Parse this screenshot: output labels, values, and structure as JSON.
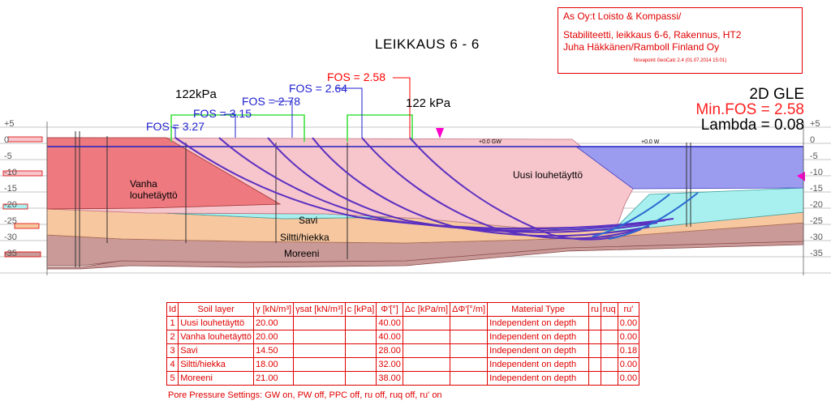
{
  "header": {
    "title_lines": [
      "As Oy:t Loisto & Kompassi/",
      "",
      "Stabiliteetti, leikkaus 6-6, Rakennus, HT2",
      "Juha Häkkänen/Ramboll Finland Oy"
    ],
    "software": "Novapoint GeoCalc 2.4   (01.07.2014 15:01)"
  },
  "section_title": "LEIKKAUS 6 - 6",
  "analysis": {
    "method": "2D GLE",
    "min_fos": "Min.FOS = 2.58",
    "lambda": "Lambda = 0.08"
  },
  "fos_labels": [
    {
      "text": "FOS = 3.27",
      "color": "#2020d0"
    },
    {
      "text": "FOS = 3.15",
      "color": "#2020d0"
    },
    {
      "text": "FOS = 2.78",
      "color": "#2020d0"
    },
    {
      "text": "FOS = 2.64",
      "color": "#2020d0"
    },
    {
      "text": "FOS = 2.58",
      "color": "#ff0000"
    }
  ],
  "loads": [
    "122kPa",
    "122 kPa"
  ],
  "water_labels": [
    "+0.0 GW",
    "+0.0 W"
  ],
  "layer_labels": {
    "vanha": [
      "Vanha",
      "louhetäyttö"
    ],
    "uusi": "Uusi louhetäyttö",
    "savi": "Savi",
    "siltti": "Siltti/hiekka",
    "moreeni": "Moreeni"
  },
  "elevation_ticks": [
    "+5",
    "0",
    "-5",
    "-10",
    "-15",
    "-20",
    "-25",
    "-30",
    "-35"
  ],
  "table": {
    "headers": [
      "Id",
      "Soil layer",
      "γ [kN/m³]",
      "γsat [kN/m³]",
      "c [kPa]",
      "Φ'[°]",
      "Δc [kPa/m]",
      "ΔΦ'[°/m]",
      "Material Type",
      "ru",
      "ruq",
      "ru'"
    ],
    "rows": [
      [
        "1",
        "Uusi louhetäyttö",
        "20.00",
        "",
        "",
        "40.00",
        "",
        "",
        "Independent on depth",
        "",
        "",
        "0.00"
      ],
      [
        "2",
        "Vanha louhetäyttö",
        "20.00",
        "",
        "",
        "40.00",
        "",
        "",
        "Independent on depth",
        "",
        "",
        "0.00"
      ],
      [
        "3",
        "Savi",
        "14.50",
        "",
        "",
        "28.00",
        "",
        "",
        "Independent on depth",
        "",
        "",
        "0.18"
      ],
      [
        "4",
        "Siltti/hiekka",
        "18.00",
        "",
        "",
        "32.00",
        "",
        "",
        "Independent on depth",
        "",
        "",
        "0.00"
      ],
      [
        "5",
        "Moreeni",
        "21.00",
        "",
        "",
        "38.00",
        "",
        "",
        "Independent on depth",
        "",
        "",
        "0.00"
      ]
    ]
  },
  "settings": "Pore Pressure Settings: GW on, PW off, PPC off, ru off, ruq off, ru' on",
  "colors": {
    "uusi": "#f7c5cc",
    "vanha": "#ee7a80",
    "savi": "#a8f0f0",
    "siltti": "#f7c8a0",
    "moreeni": "#c99a98",
    "water": "#9b9bf0",
    "slip": "#5a2fc0",
    "load": "#40e040",
    "frame": "#e00000"
  }
}
